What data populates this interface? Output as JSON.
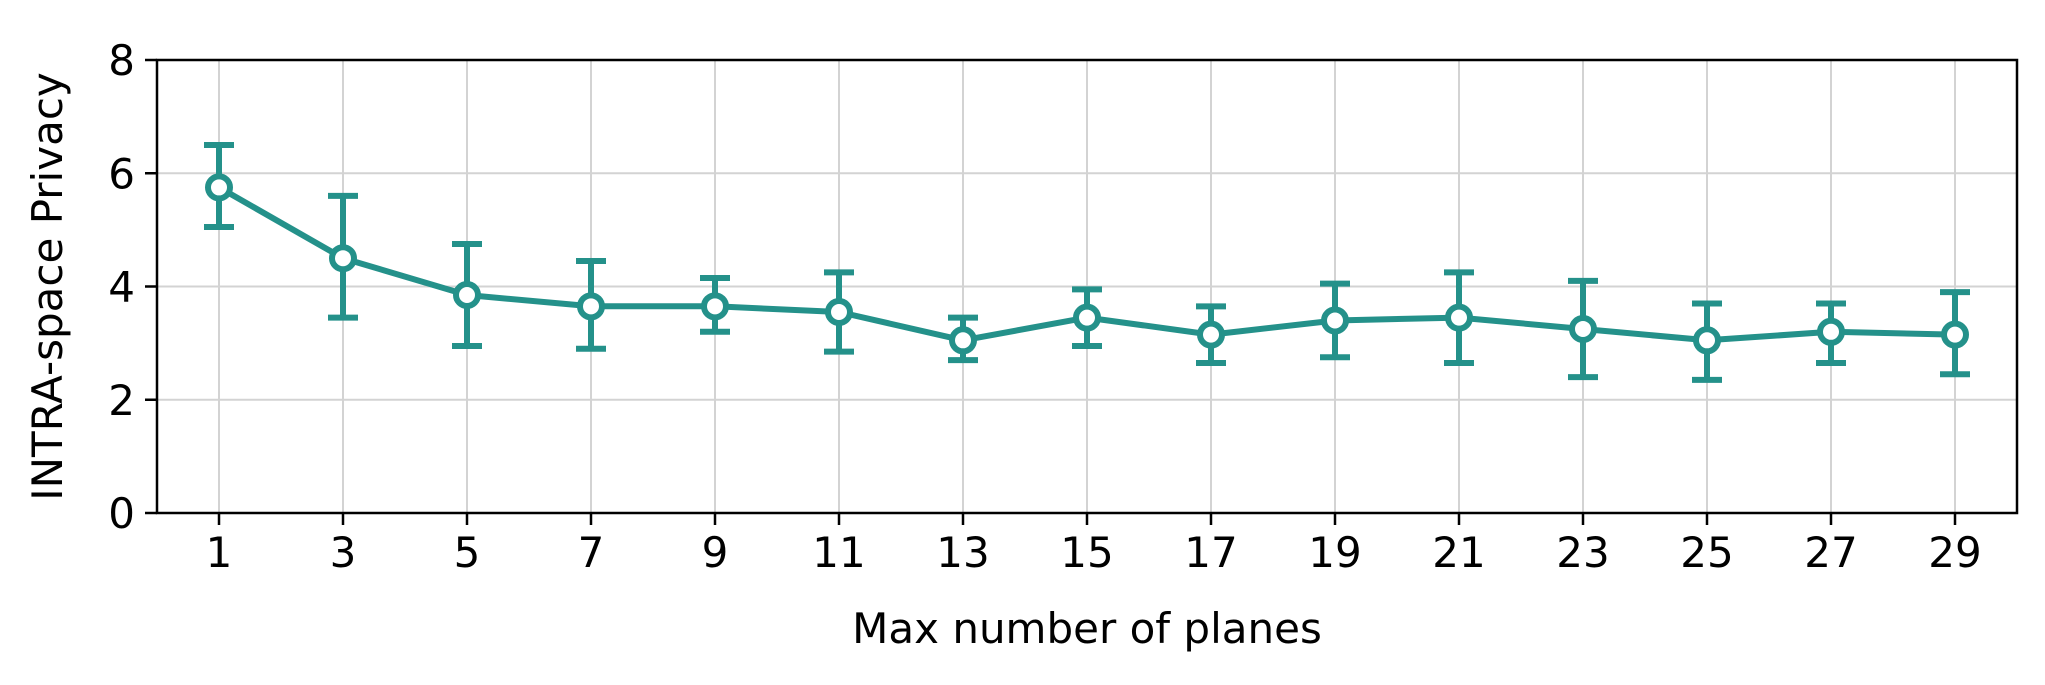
{
  "chart_data": {
    "type": "line",
    "xlabel": "Max number of planes",
    "ylabel": "INTRA-space Privacy",
    "xlim": [
      0,
      30
    ],
    "ylim": [
      0,
      8
    ],
    "xticks": [
      1,
      3,
      5,
      7,
      9,
      11,
      13,
      15,
      17,
      19,
      21,
      23,
      25,
      27,
      29
    ],
    "yticks": [
      0,
      2,
      4,
      6,
      8
    ],
    "grid": true,
    "legend": "none",
    "series": [
      {
        "color": "#24918a",
        "marker": "open-circle",
        "x": [
          1,
          3,
          5,
          7,
          9,
          11,
          13,
          15,
          17,
          19,
          21,
          23,
          25,
          27,
          29
        ],
        "y": [
          5.75,
          4.5,
          3.85,
          3.65,
          3.65,
          3.55,
          3.05,
          3.45,
          3.15,
          3.4,
          3.45,
          3.25,
          3.05,
          3.2,
          3.15
        ],
        "err_low": [
          5.05,
          3.45,
          2.95,
          2.9,
          3.2,
          2.85,
          2.7,
          2.95,
          2.65,
          2.75,
          2.65,
          2.4,
          2.35,
          2.65,
          2.45
        ],
        "err_high": [
          6.5,
          5.6,
          4.75,
          4.45,
          4.15,
          4.25,
          3.45,
          3.95,
          3.65,
          4.05,
          4.25,
          4.1,
          3.7,
          3.7,
          3.9
        ]
      }
    ]
  }
}
